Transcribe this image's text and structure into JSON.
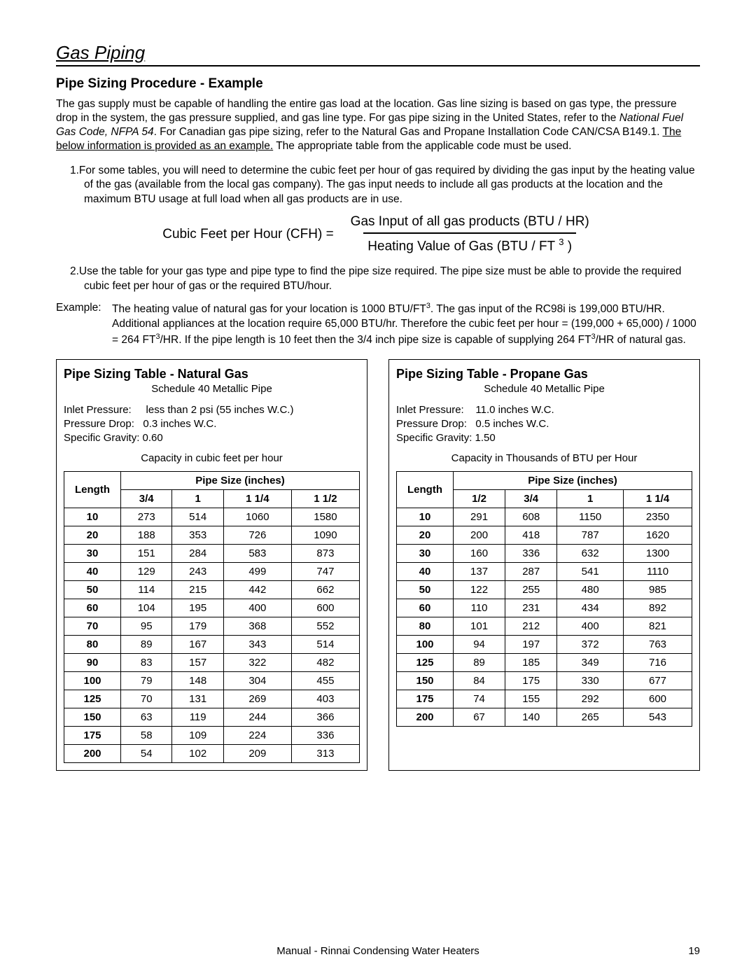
{
  "section_title": "Gas Piping",
  "sub_title": "Pipe Sizing Procedure - Example",
  "intro_1": "The gas supply must be capable of handling the entire gas load at the location.  Gas line sizing is based on gas type, the pressure drop in the system, the gas pressure supplied, and gas line type.  For gas pipe sizing in the United States, refer to the ",
  "intro_italic": "National Fuel Gas Code, NFPA 54",
  "intro_2": ".  For Canadian gas pipe sizing, refer to the Natural Gas and Propane Installation Code CAN/CSA B149.1.  ",
  "intro_underline": "The below information is provided as an example.",
  "intro_3": "  The appropriate table from the applicable code must be used.",
  "item1": "1.For some tables, you will need to determine the cubic feet per hour of gas required by dividing the gas input by the heating value of the gas (available from the local gas company).  The gas input needs to include all gas products at the location and the maximum BTU usage at full load when all gas products are in use.",
  "formula_lhs": "Cubic Feet per Hour (CFH) =",
  "formula_num": "Gas Input of all gas products (BTU / HR)",
  "formula_den_a": "Heating Value of Gas (BTU / FT ",
  "formula_den_b": " )",
  "item2": "2.Use the table for your gas type and pipe type to find the pipe size required.  The pipe size must be able to provide the required cubic feet per hour of gas or the required BTU/hour.",
  "example_label": "Example:",
  "example_a": "The heating value of natural gas for your location is 1000 BTU/FT",
  "example_b": ".  The gas input of the RC98i is 199,000 BTU/HR.  Additional appliances at the location require 65,000 BTU/hr.  Therefore the cubic feet per hour = (199,000 + 65,000) / 1000 = 264 FT",
  "example_c": "/HR.  If the pipe length is 10 feet then the 3/4 inch pipe size is capable of supplying 264 FT",
  "example_d": "/HR of natural gas.",
  "nat": {
    "title": "Pipe Sizing Table - Natural Gas",
    "subtitle": "Schedule 40 Metallic Pipe",
    "meta1": "Inlet Pressure:     less than 2 psi (55 inches W.C.)",
    "meta2": "Pressure Drop:   0.3 inches W.C.",
    "meta3": "Specific Gravity: 0.60",
    "cap": "Capacity in cubic feet per hour",
    "header_group": "Pipe Size (inches)",
    "header_len": "Length",
    "sizes": [
      "3/4",
      "1",
      "1 1/4",
      "1 1/2"
    ],
    "rows": [
      [
        "10",
        "273",
        "514",
        "1060",
        "1580"
      ],
      [
        "20",
        "188",
        "353",
        "726",
        "1090"
      ],
      [
        "30",
        "151",
        "284",
        "583",
        "873"
      ],
      [
        "40",
        "129",
        "243",
        "499",
        "747"
      ],
      [
        "50",
        "114",
        "215",
        "442",
        "662"
      ],
      [
        "60",
        "104",
        "195",
        "400",
        "600"
      ],
      [
        "70",
        "95",
        "179",
        "368",
        "552"
      ],
      [
        "80",
        "89",
        "167",
        "343",
        "514"
      ],
      [
        "90",
        "83",
        "157",
        "322",
        "482"
      ],
      [
        "100",
        "79",
        "148",
        "304",
        "455"
      ],
      [
        "125",
        "70",
        "131",
        "269",
        "403"
      ],
      [
        "150",
        "63",
        "119",
        "244",
        "366"
      ],
      [
        "175",
        "58",
        "109",
        "224",
        "336"
      ],
      [
        "200",
        "54",
        "102",
        "209",
        "313"
      ]
    ]
  },
  "prop": {
    "title": "Pipe Sizing Table - Propane Gas",
    "subtitle": "Schedule 40 Metallic Pipe",
    "meta1": "Inlet Pressure:    11.0 inches W.C.",
    "meta2": "Pressure Drop:   0.5 inches W.C.",
    "meta3": "Specific Gravity: 1.50",
    "cap": "Capacity in Thousands of BTU per Hour",
    "header_group": "Pipe Size (inches)",
    "header_len": "Length",
    "sizes": [
      "1/2",
      "3/4",
      "1",
      "1 1/4"
    ],
    "rows": [
      [
        "10",
        "291",
        "608",
        "1150",
        "2350"
      ],
      [
        "20",
        "200",
        "418",
        "787",
        "1620"
      ],
      [
        "30",
        "160",
        "336",
        "632",
        "1300"
      ],
      [
        "40",
        "137",
        "287",
        "541",
        "1110"
      ],
      [
        "50",
        "122",
        "255",
        "480",
        "985"
      ],
      [
        "60",
        "110",
        "231",
        "434",
        "892"
      ],
      [
        "80",
        "101",
        "212",
        "400",
        "821"
      ],
      [
        "100",
        "94",
        "197",
        "372",
        "763"
      ],
      [
        "125",
        "89",
        "185",
        "349",
        "716"
      ],
      [
        "150",
        "84",
        "175",
        "330",
        "677"
      ],
      [
        "175",
        "74",
        "155",
        "292",
        "600"
      ],
      [
        "200",
        "67",
        "140",
        "265",
        "543"
      ]
    ]
  },
  "footer_center": "Manual - Rinnai Condensing Water Heaters",
  "footer_page": "19"
}
